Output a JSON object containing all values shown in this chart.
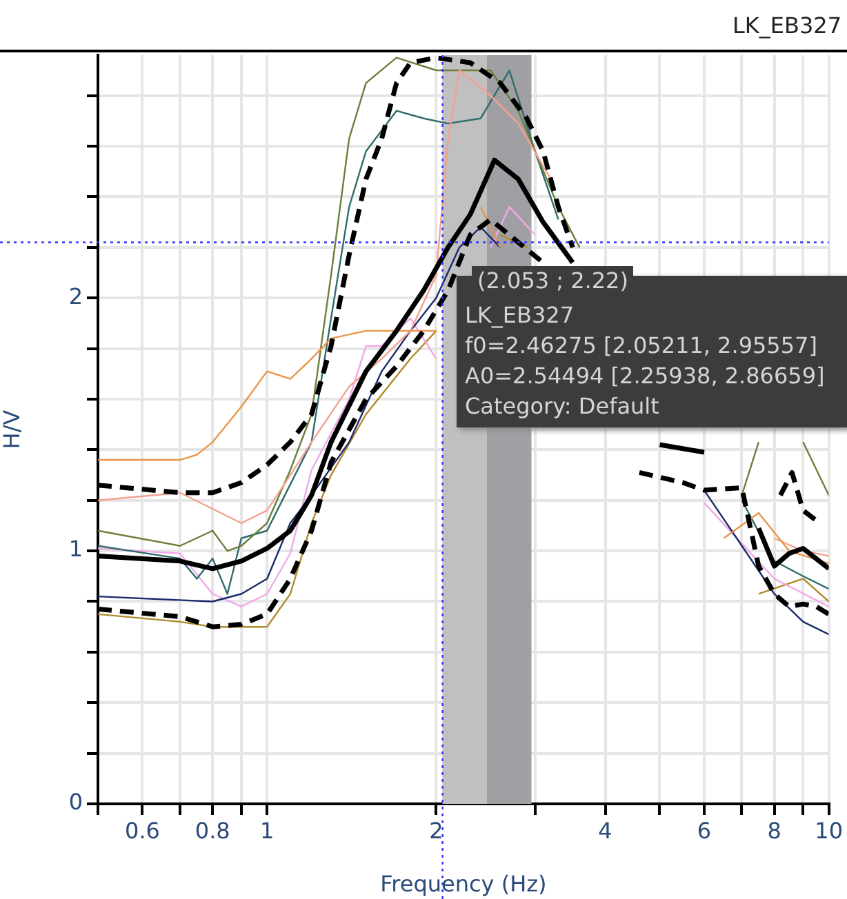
{
  "chart_data": {
    "type": "line",
    "title": "LK_EB327",
    "xlabel": "Frequency (Hz)",
    "ylabel": "H/V",
    "log": "x",
    "grid": true,
    "legend": false,
    "marker": "none",
    "xlim": [
      0.5,
      10
    ],
    "ylim": [
      0,
      2.96
    ],
    "xticks": [
      {
        "value": 0.5,
        "label": null
      },
      {
        "value": 0.6,
        "label": "0.6"
      },
      {
        "value": 0.7,
        "label": null
      },
      {
        "value": 0.8,
        "label": "0.8"
      },
      {
        "value": 0.9,
        "label": null
      },
      1,
      2,
      {
        "value": 3,
        "label": null
      },
      4,
      {
        "value": 5,
        "label": null
      },
      6,
      {
        "value": 7,
        "label": null
      },
      8,
      {
        "value": 9,
        "label": null
      },
      10
    ],
    "yticks": [
      0,
      {
        "value": 0.2,
        "label": null
      },
      {
        "value": 0.4,
        "label": null
      },
      {
        "value": 0.6,
        "label": null
      },
      {
        "value": 0.8,
        "label": null
      },
      1,
      {
        "value": 1.2,
        "label": null
      },
      {
        "value": 1.4,
        "label": null
      },
      {
        "value": 1.6,
        "label": null
      },
      {
        "value": 1.8,
        "label": null
      },
      2,
      {
        "value": 2.2,
        "label": null
      },
      {
        "value": 2.4,
        "label": null
      },
      {
        "value": 2.6,
        "label": null
      },
      {
        "value": 2.8,
        "label": null
      }
    ],
    "bands": [
      {
        "axis": "x",
        "from": 2.05211,
        "to": 2.46275,
        "color": "#c0c0c0"
      },
      {
        "axis": "x",
        "from": 2.46275,
        "to": 2.95557,
        "color": "#a0a0a4"
      }
    ],
    "ref_lines": [
      {
        "axis": "x",
        "value": 2.053,
        "color": "#3030ff",
        "line_style": "dotted"
      },
      {
        "axis": "y",
        "value": 2.22,
        "color": "#3030ff",
        "line_style": "dotted"
      }
    ],
    "annotations": [
      "(2.053 ; 2.22)",
      "LK_EB327",
      "f0=2.46275 [2.05211, 2.95557]",
      "A0=2.54494 [2.25938, 2.86659]",
      "Category: Default"
    ],
    "series": [
      {
        "color": "#000000",
        "line_style": "solid",
        "x": [
          0.5,
          0.7,
          0.8,
          0.9,
          1.0,
          1.1,
          1.2,
          1.3,
          1.5,
          1.7,
          1.9,
          2.1,
          2.3,
          2.54,
          2.8,
          3.1,
          3.5,
          4.2,
          5,
          6,
          6.8,
          7.5,
          8,
          8.5,
          9,
          10
        ],
        "values": [
          0.98,
          0.96,
          0.93,
          0.96,
          1.01,
          1.08,
          1.22,
          1.43,
          1.71,
          1.87,
          2.03,
          2.2,
          2.33,
          2.545,
          2.47,
          2.3,
          2.14,
          null,
          1.42,
          1.39,
          null,
          1.09,
          0.94,
          0.99,
          1.01,
          0.93
        ]
      },
      {
        "color": "#000000",
        "line_style": "dashed",
        "x": [
          0.5,
          0.7,
          0.8,
          0.9,
          1.0,
          1.1,
          1.2,
          1.3,
          1.4,
          1.5,
          1.6,
          1.7,
          1.8,
          2.0,
          2.3,
          2.6,
          2.9,
          3.1,
          3.3,
          3.5,
          5,
          8.2,
          8.6,
          9,
          9.5
        ],
        "values": [
          1.26,
          1.23,
          1.23,
          1.27,
          1.34,
          1.43,
          1.54,
          1.81,
          2.17,
          2.47,
          2.63,
          2.85,
          2.93,
          2.95,
          2.93,
          2.85,
          2.71,
          2.58,
          2.36,
          2.2,
          null,
          1.22,
          1.31,
          1.16,
          1.12
        ]
      },
      {
        "color": "#000000",
        "line_style": "dashed",
        "x": [
          0.5,
          0.7,
          0.8,
          0.9,
          1.0,
          1.1,
          1.2,
          1.3,
          1.5,
          1.7,
          1.9,
          2.1,
          2.3,
          2.5,
          2.8,
          3.1,
          4,
          4.6,
          5.5,
          6,
          7,
          7.5,
          8,
          8.5,
          9,
          9.5,
          10
        ],
        "values": [
          0.77,
          0.74,
          0.7,
          0.71,
          0.75,
          0.89,
          1.08,
          1.35,
          1.6,
          1.73,
          1.87,
          2.03,
          2.25,
          2.31,
          2.22,
          2.14,
          null,
          1.31,
          1.27,
          1.24,
          1.25,
          0.94,
          0.83,
          0.78,
          0.79,
          0.78,
          0.75
        ]
      },
      {
        "color": "#e8954a",
        "line_style": "solid",
        "x": [
          0.5,
          0.7,
          0.75,
          0.8,
          0.9,
          1.0,
          1.1,
          1.2,
          1.3,
          1.5,
          1.7,
          2.0,
          2.2,
          2.4,
          2.6,
          4,
          6.5,
          7.5,
          8.5,
          10
        ],
        "values": [
          1.36,
          1.36,
          1.38,
          1.43,
          1.57,
          1.71,
          1.68,
          1.76,
          1.84,
          1.87,
          1.87,
          1.87,
          null,
          2.36,
          2.2,
          null,
          1.05,
          1.15,
          1.0,
          0.95
        ]
      },
      {
        "color": "#f4a090",
        "line_style": "solid",
        "x": [
          0.5,
          0.7,
          0.9,
          1.0,
          1.1,
          1.2,
          1.4,
          1.6,
          1.8,
          2.0,
          2.1,
          2.2,
          2.5,
          2.8,
          3.2,
          4.5,
          8,
          9,
          10
        ],
        "values": [
          1.2,
          1.23,
          1.11,
          1.16,
          1.3,
          1.43,
          1.65,
          1.76,
          1.87,
          2.09,
          2.63,
          2.9,
          2.8,
          2.69,
          2.47,
          null,
          1.05,
          1.0,
          0.98
        ]
      },
      {
        "color": "#6b7f3a",
        "line_style": "solid",
        "x": [
          0.5,
          0.7,
          0.8,
          0.85,
          0.9,
          1.0,
          1.1,
          1.2,
          1.3,
          1.4,
          1.5,
          1.7,
          2.0,
          2.5,
          2.8,
          3.3,
          3.6,
          5,
          7,
          7.5,
          8.5,
          9,
          10
        ],
        "values": [
          1.08,
          1.02,
          1.08,
          1.0,
          1.02,
          1.11,
          1.32,
          1.54,
          2.09,
          2.63,
          2.85,
          2.95,
          2.9,
          2.9,
          2.74,
          2.36,
          2.2,
          null,
          1.22,
          1.43,
          null,
          1.43,
          1.22
        ]
      },
      {
        "color": "#2e6b6b",
        "line_style": "solid",
        "x": [
          0.5,
          0.7,
          0.75,
          0.8,
          0.85,
          0.9,
          1.0,
          1.2,
          1.3,
          1.4,
          1.5,
          1.7,
          1.9,
          2.1,
          2.4,
          2.7,
          3.0,
          3.3,
          4.5,
          7,
          8,
          9,
          10
        ],
        "values": [
          1.02,
          0.97,
          0.89,
          0.97,
          0.83,
          1.05,
          1.08,
          1.43,
          1.92,
          2.36,
          2.58,
          2.74,
          2.71,
          2.69,
          2.71,
          2.9,
          2.58,
          2.31,
          null,
          1.2,
          0.96,
          0.9,
          0.85
        ]
      },
      {
        "color": "#1a2a6b",
        "line_style": "solid",
        "x": [
          0.5,
          0.8,
          0.9,
          1.0,
          1.1,
          1.2,
          1.4,
          1.6,
          1.8,
          2.0,
          2.2,
          2.4,
          2.6,
          4.5,
          6,
          8,
          9,
          10
        ],
        "values": [
          0.82,
          0.8,
          0.83,
          0.89,
          1.11,
          1.22,
          1.43,
          1.71,
          1.87,
          2.0,
          2.2,
          2.28,
          2.2,
          null,
          1.24,
          0.83,
          0.72,
          0.67
        ]
      },
      {
        "color": "#f0a8e8",
        "line_style": "solid",
        "x": [
          0.5,
          0.7,
          0.8,
          0.9,
          1.0,
          1.1,
          1.2,
          1.4,
          1.5,
          1.6,
          1.8,
          2.0,
          2.2,
          2.5,
          2.7,
          3.0,
          4.5,
          6,
          8,
          10
        ],
        "values": [
          1.01,
          0.99,
          0.83,
          0.78,
          0.83,
          0.99,
          1.32,
          1.6,
          1.81,
          1.81,
          1.92,
          1.76,
          null,
          2.2,
          2.36,
          2.25,
          null,
          1.19,
          0.89,
          0.78
        ]
      },
      {
        "color": "#b08a2a",
        "line_style": "solid",
        "x": [
          0.5,
          0.7,
          0.8,
          1.0,
          1.1,
          1.2,
          1.3,
          1.5,
          1.8,
          2.0,
          2.3,
          2.6,
          2.9,
          4.5,
          7.5,
          9,
          10
        ],
        "values": [
          0.75,
          0.72,
          0.7,
          0.7,
          0.83,
          1.11,
          1.3,
          1.54,
          1.76,
          1.87,
          null,
          2.25,
          2.2,
          null,
          0.83,
          0.89,
          0.8
        ]
      }
    ]
  }
}
